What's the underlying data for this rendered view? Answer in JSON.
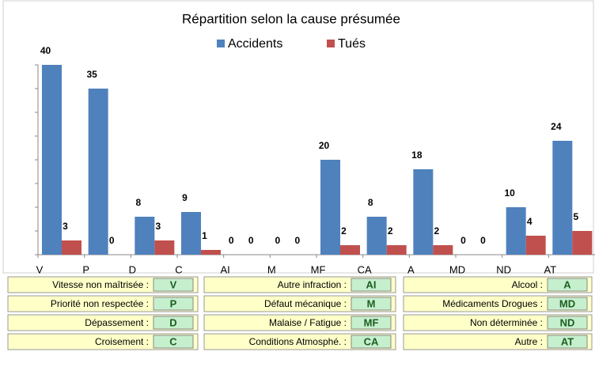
{
  "chart_data": {
    "type": "bar",
    "title": "Répartition selon la cause présumée",
    "categories": [
      "V",
      "P",
      "D",
      "C",
      "AI",
      "M",
      "MF",
      "CA",
      "A",
      "MD",
      "ND",
      "AT"
    ],
    "series": [
      {
        "name": "Accidents",
        "color": "#4f81bd",
        "values": [
          40,
          35,
          8,
          9,
          0,
          0,
          20,
          8,
          18,
          0,
          10,
          24
        ]
      },
      {
        "name": "Tués",
        "color": "#c0504d",
        "values": [
          3,
          0,
          3,
          1,
          0,
          0,
          2,
          2,
          2,
          0,
          4,
          5
        ]
      }
    ],
    "ylim": [
      0,
      40
    ],
    "yticks": [
      0,
      5,
      10,
      15,
      20,
      25,
      30,
      35,
      40
    ],
    "grid": false
  },
  "code_table": [
    [
      {
        "label": "Vitesse non maîtrisée :",
        "code": "V"
      },
      {
        "label": "Autre infraction :",
        "code": "AI"
      },
      {
        "label": "Alcool :",
        "code": "A"
      }
    ],
    [
      {
        "label": "Priorité non respectée :",
        "code": "P"
      },
      {
        "label": "Défaut mécanique :",
        "code": "M"
      },
      {
        "label": "Médicaments Drogues :",
        "code": "MD"
      }
    ],
    [
      {
        "label": "Dépassement :",
        "code": "D"
      },
      {
        "label": "Malaise / Fatigue :",
        "code": "MF"
      },
      {
        "label": "Non déterminée :",
        "code": "ND"
      }
    ],
    [
      {
        "label": "Croisement :",
        "code": "C"
      },
      {
        "label": "Conditions Atmosphé. :",
        "code": "CA"
      },
      {
        "label": "Autre :",
        "code": "AT"
      }
    ]
  ]
}
